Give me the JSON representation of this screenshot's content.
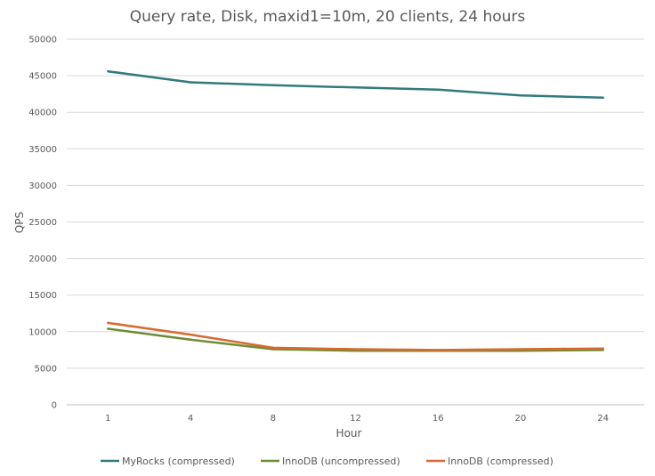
{
  "chart_data": {
    "type": "line",
    "title": "Query rate, Disk, maxid1=10m, 20 clients, 24 hours",
    "xlabel": "Hour",
    "ylabel": "QPS",
    "categories": [
      "1",
      "4",
      "8",
      "12",
      "16",
      "20",
      "24"
    ],
    "ylim": [
      0,
      50000
    ],
    "yticks": [
      0,
      5000,
      10000,
      15000,
      20000,
      25000,
      30000,
      35000,
      40000,
      45000,
      50000
    ],
    "grid": true,
    "legend_position": "bottom",
    "series": [
      {
        "name": "MyRocks (compressed)",
        "color": "#31797d",
        "values": [
          45600,
          44100,
          43700,
          43400,
          43100,
          42300,
          42000
        ]
      },
      {
        "name": "InnoDB (uncompressed)",
        "color": "#6e8c35",
        "values": [
          10400,
          8900,
          7600,
          7400,
          7400,
          7400,
          7500
        ]
      },
      {
        "name": "InnoDB (compressed)",
        "color": "#d9692e",
        "values": [
          11200,
          9600,
          7800,
          7600,
          7500,
          7600,
          7700
        ]
      }
    ]
  }
}
